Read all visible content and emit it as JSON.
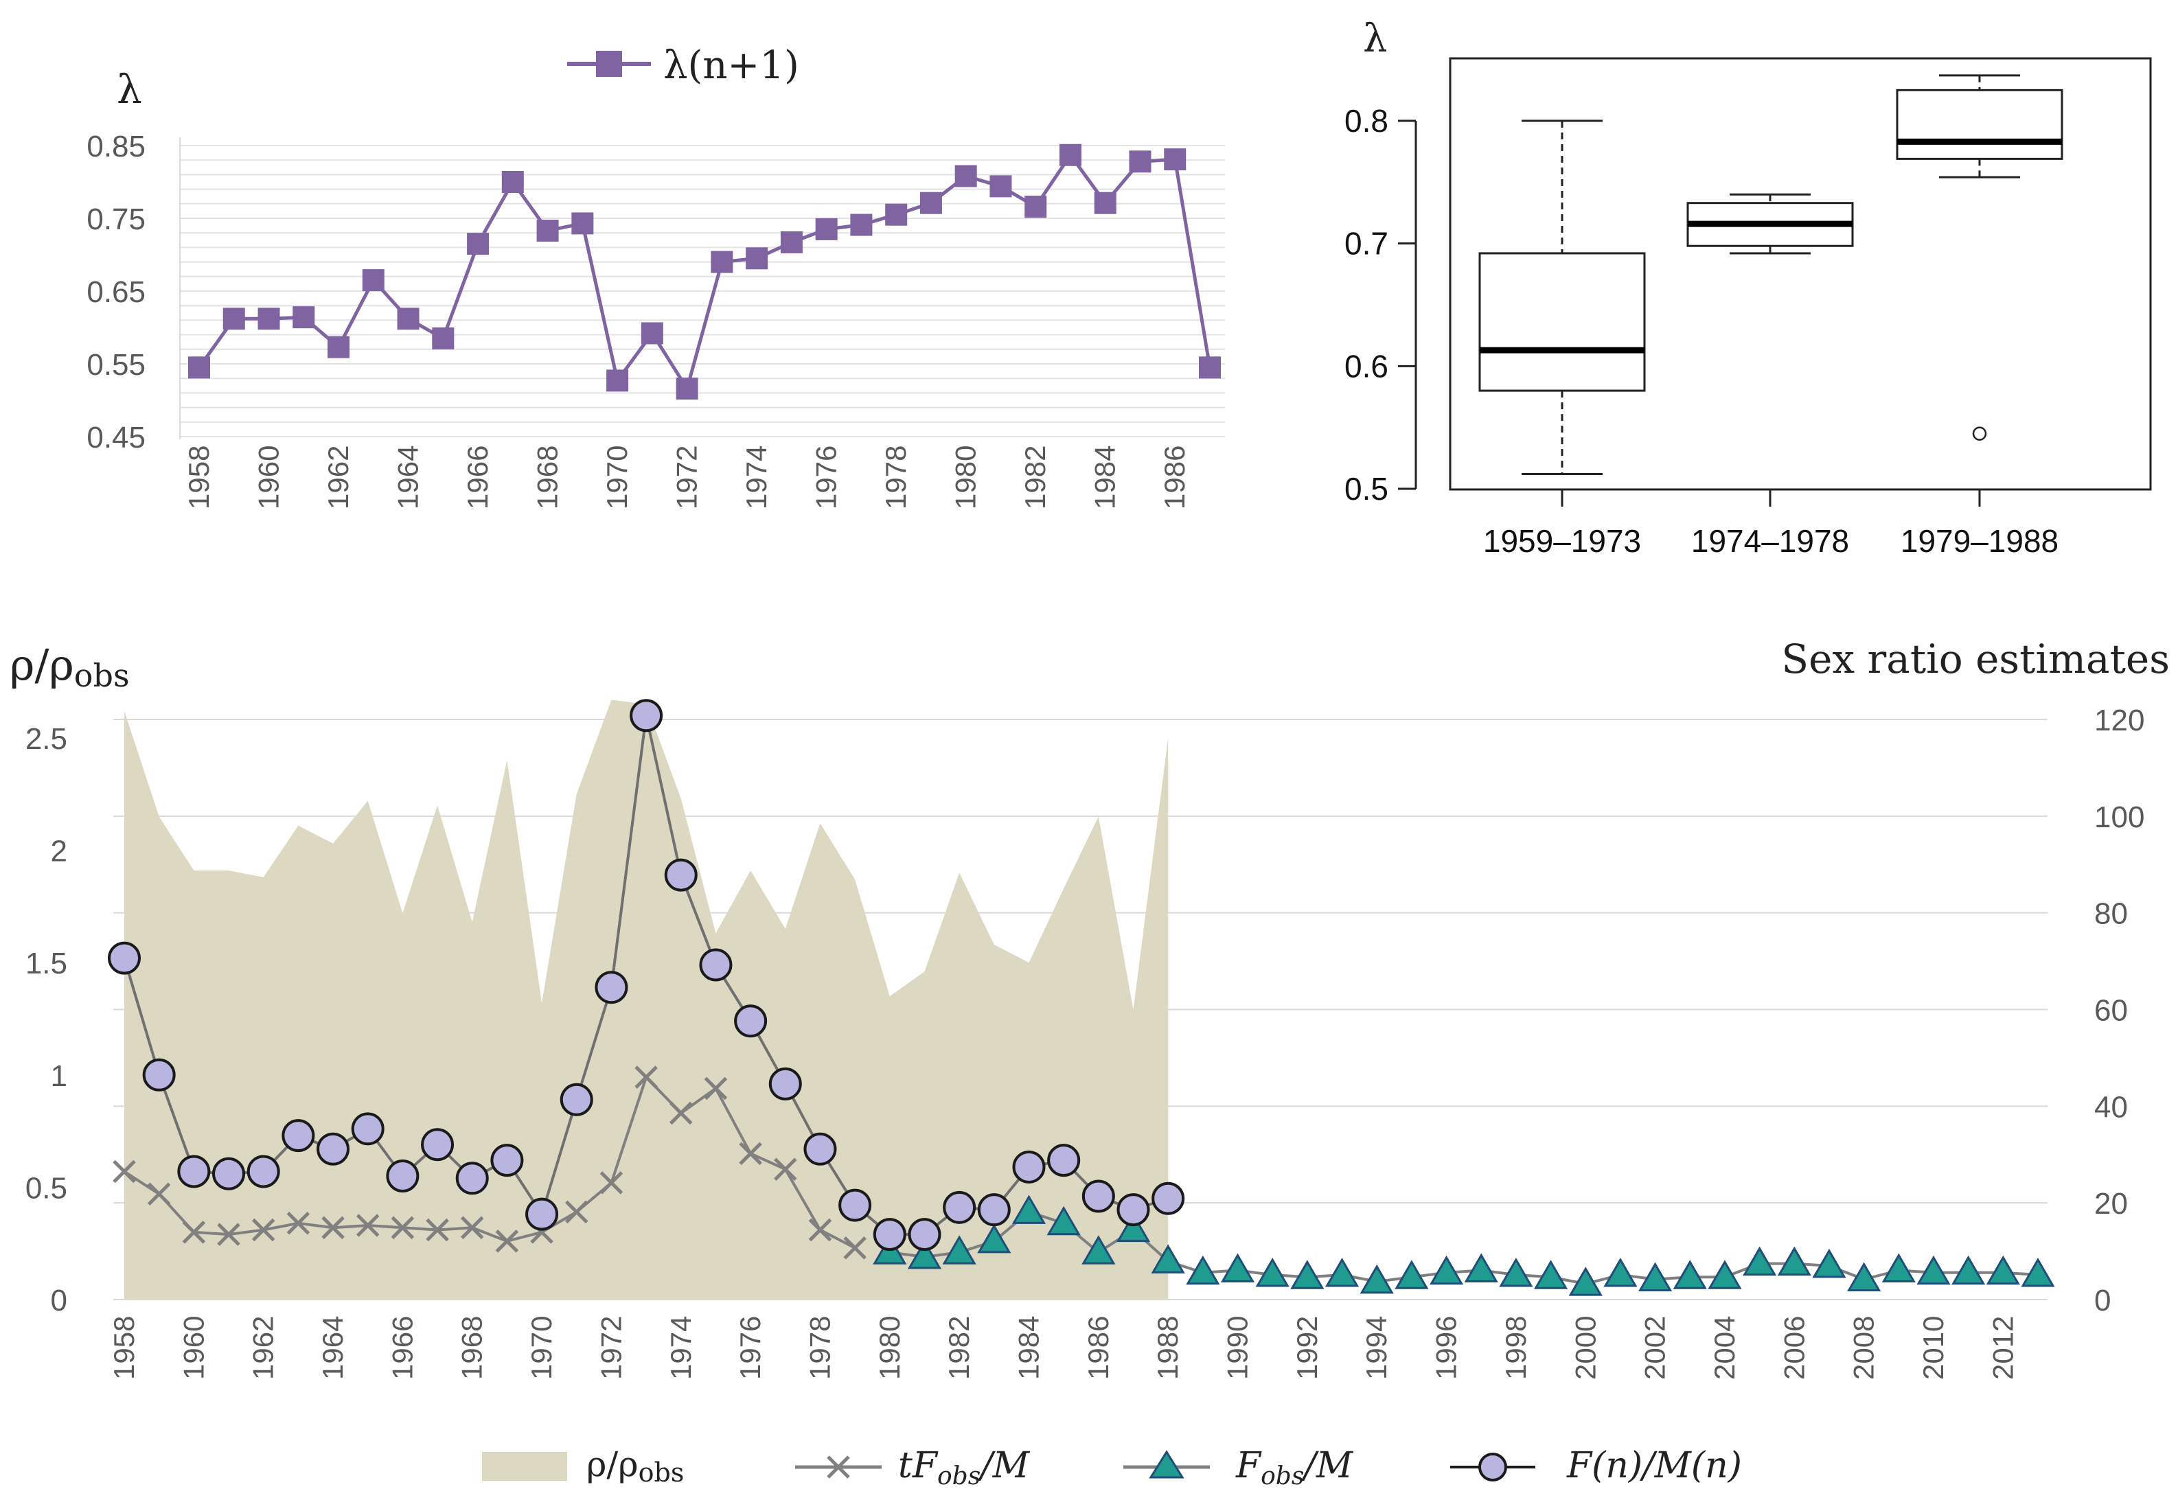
{
  "chart_data": [
    {
      "id": "lambda-line",
      "type": "line",
      "ylabel": "λ",
      "ylim": [
        0.45,
        0.85
      ],
      "yticks": [
        "0.85",
        "0.75",
        "0.65",
        "0.55",
        "0.45"
      ],
      "xticks": [
        "1958",
        "1960",
        "1962",
        "1964",
        "1966",
        "1968",
        "1970",
        "1972",
        "1974",
        "1976",
        "1978",
        "1980",
        "1982",
        "1984",
        "1986"
      ],
      "color": "#8064a2",
      "series": [
        {
          "name": "λ(n+1)",
          "x": [
            1958,
            1959,
            1960,
            1961,
            1962,
            1963,
            1964,
            1965,
            1966,
            1967,
            1968,
            1969,
            1970,
            1971,
            1972,
            1973,
            1974,
            1975,
            1976,
            1977,
            1978,
            1979,
            1980,
            1981,
            1982,
            1983,
            1984,
            1985,
            1986,
            1987
          ],
          "values": [
            0.545,
            0.612,
            0.612,
            0.614,
            0.573,
            0.665,
            0.612,
            0.585,
            0.715,
            0.8,
            0.733,
            0.743,
            0.527,
            0.592,
            0.516,
            0.69,
            0.695,
            0.717,
            0.735,
            0.741,
            0.755,
            0.771,
            0.808,
            0.794,
            0.766,
            0.837,
            0.771,
            0.828,
            0.831,
            0.545
          ]
        }
      ]
    },
    {
      "id": "lambda-box",
      "type": "box",
      "ylabel": "λ",
      "ylim": [
        0.5,
        0.85
      ],
      "yticks": [
        "0.8",
        "0.7",
        "0.6",
        "0.5"
      ],
      "categories": [
        "1959–1973",
        "1974–1978",
        "1979–1988"
      ],
      "boxes": [
        {
          "min": 0.512,
          "q1": 0.58,
          "median": 0.613,
          "q3": 0.692,
          "max": 0.8,
          "outliers": []
        },
        {
          "min": 0.692,
          "q1": 0.698,
          "median": 0.716,
          "q3": 0.733,
          "max": 0.74,
          "outliers": []
        },
        {
          "min": 0.754,
          "q1": 0.769,
          "median": 0.783,
          "q3": 0.825,
          "max": 0.837,
          "outliers": [
            0.545
          ]
        }
      ]
    },
    {
      "id": "sex-ratio",
      "type": "area+line",
      "ylabel_left": "ρ/ρobs",
      "ylabel_right": "Sex ratio estimates",
      "ylim_left": [
        0,
        2.6
      ],
      "ylim_right": [
        0,
        123
      ],
      "yticks_left": [
        "2.5",
        "2",
        "1.5",
        "1",
        "0.5",
        "0"
      ],
      "yticks_right": [
        "120",
        "100",
        "80",
        "60",
        "40",
        "20",
        "0"
      ],
      "xticks": [
        "1958",
        "1960",
        "1962",
        "1964",
        "1966",
        "1968",
        "1970",
        "1972",
        "1974",
        "1976",
        "1978",
        "1980",
        "1982",
        "1984",
        "1986",
        "1988",
        "1990",
        "1992",
        "1994",
        "1996",
        "1998",
        "2000",
        "2002",
        "2004",
        "2006",
        "2008",
        "2010",
        "2012"
      ],
      "colors": {
        "area": "#dcd8c1",
        "tF": "#808080",
        "Fobs_line": "#7f7f7f",
        "Fobs_marker": "#1f9b8f",
        "Fobs_marker_stroke": "#1f4e79",
        "Fn_fill": "#b8b6e0",
        "Fn_stroke": "#1a1a1a"
      },
      "area": {
        "name": "ρ/ρobs",
        "x": [
          1958,
          1959,
          1960,
          1961,
          1962,
          1963,
          1964,
          1965,
          1966,
          1967,
          1968,
          1969,
          1970,
          1971,
          1972,
          1973,
          1974,
          1975,
          1976,
          1977,
          1978,
          1979,
          1980,
          1981,
          1982,
          1983,
          1984,
          1985,
          1986,
          1987,
          1988
        ],
        "values": [
          2.62,
          2.15,
          1.91,
          1.91,
          1.88,
          2.11,
          2.03,
          2.22,
          1.72,
          2.2,
          1.68,
          2.4,
          1.32,
          2.25,
          2.67,
          2.65,
          2.23,
          1.63,
          1.91,
          1.65,
          2.12,
          1.87,
          1.35,
          1.46,
          1.9,
          1.58,
          1.5,
          1.83,
          2.15,
          1.29,
          2.5
        ]
      },
      "series": [
        {
          "name": "tFobs/M",
          "x": [
            1958,
            1959,
            1960,
            1961,
            1962,
            1963,
            1964,
            1965,
            1966,
            1967,
            1968,
            1969,
            1970,
            1971,
            1972,
            1973,
            1974,
            1975,
            1976,
            1977,
            1978,
            1979
          ],
          "values": [
            0.57,
            0.47,
            0.3,
            0.29,
            0.31,
            0.34,
            0.32,
            0.33,
            0.32,
            0.31,
            0.32,
            0.26,
            0.3,
            0.39,
            0.52,
            0.99,
            0.83,
            0.94,
            0.65,
            0.58,
            0.31,
            0.23
          ]
        },
        {
          "name": "Fobs/M",
          "x": [
            1980,
            1981,
            1982,
            1983,
            1984,
            1985,
            1986,
            1987,
            1988,
            1989,
            1990,
            1991,
            1992,
            1993,
            1994,
            1995,
            1996,
            1997,
            1998,
            1999,
            2000,
            2001,
            2002,
            2003,
            2004,
            2005,
            2006,
            2007,
            2008,
            2009,
            2010,
            2011,
            2012,
            2013
          ],
          "values": [
            0.21,
            0.19,
            0.21,
            0.26,
            0.39,
            0.34,
            0.21,
            0.31,
            0.17,
            0.12,
            0.13,
            0.11,
            0.1,
            0.11,
            0.08,
            0.1,
            0.12,
            0.13,
            0.11,
            0.1,
            0.07,
            0.11,
            0.09,
            0.1,
            0.1,
            0.16,
            0.16,
            0.15,
            0.09,
            0.13,
            0.12,
            0.12,
            0.12,
            0.11
          ]
        },
        {
          "name": "F(n)/M(n)",
          "x": [
            1958,
            1959,
            1960,
            1961,
            1962,
            1963,
            1964,
            1965,
            1966,
            1967,
            1968,
            1969,
            1970,
            1971,
            1972,
            1973,
            1974,
            1975,
            1976,
            1977,
            1978,
            1979,
            1980,
            1981,
            1982,
            1983,
            1984,
            1985,
            1986,
            1987,
            1988
          ],
          "values": [
            1.52,
            1.0,
            0.57,
            0.56,
            0.57,
            0.73,
            0.67,
            0.76,
            0.55,
            0.69,
            0.54,
            0.62,
            0.38,
            0.89,
            1.39,
            2.6,
            1.89,
            1.49,
            1.24,
            0.96,
            0.67,
            0.42,
            0.29,
            0.29,
            0.41,
            0.4,
            0.59,
            0.62,
            0.46,
            0.4,
            0.45
          ]
        }
      ],
      "legend": {
        "area": "ρ/ρobs",
        "tF": "tFobs/M",
        "Fobs": "Fobs/M",
        "Fn": "F(n)/M(n)"
      }
    }
  ],
  "top_left": {
    "ylabel": "λ",
    "legend_label": "λ(n+1)"
  },
  "top_right": {
    "ylabel": "λ"
  },
  "bottom": {
    "ylabel_left_base": "ρ/ρ",
    "ylabel_left_sub": "obs",
    "ylabel_right": "Sex ratio estimates",
    "legend_rho_base": "ρ/ρ",
    "legend_rho_sub": "obs",
    "legend_tF_pre": "tF",
    "legend_tF_sub": "obs",
    "legend_tF_post": "/M",
    "legend_F_pre": "F",
    "legend_F_sub": "obs",
    "legend_F_post": "/M",
    "legend_Fn": "F(n)/M(n)"
  }
}
